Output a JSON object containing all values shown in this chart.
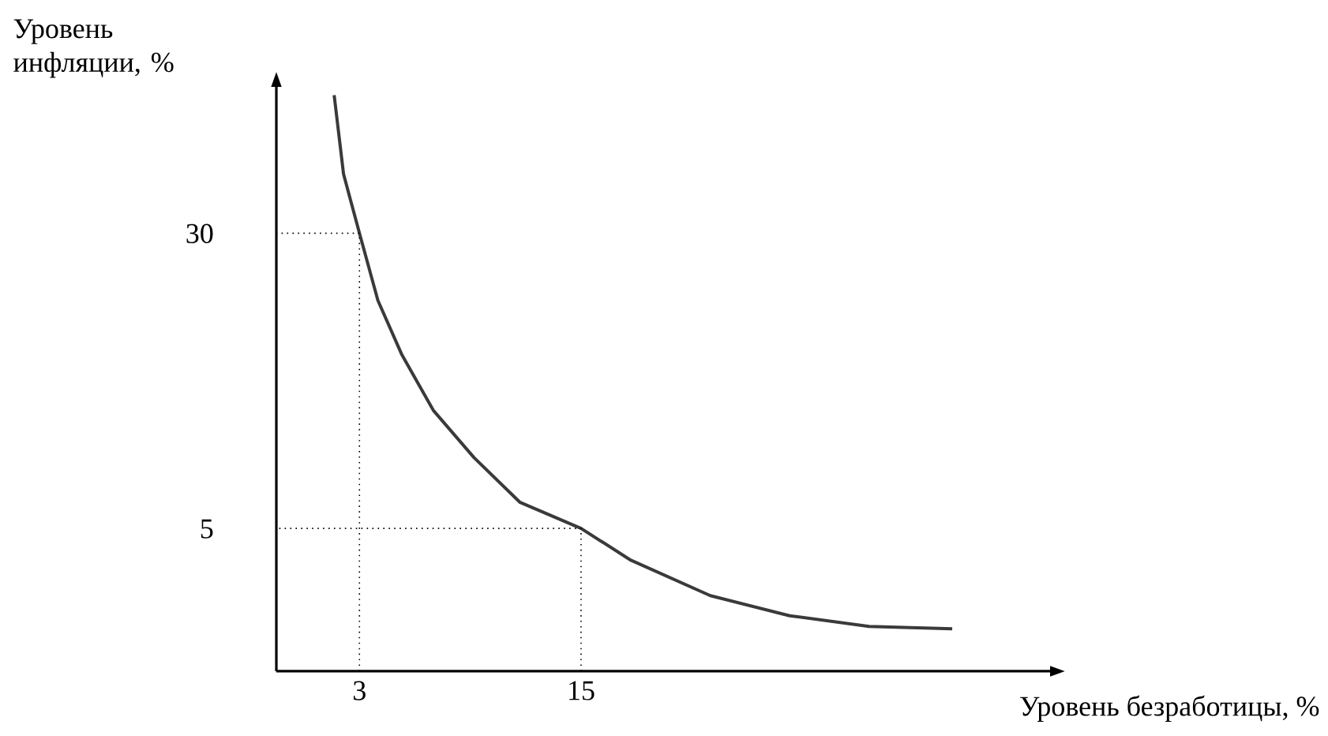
{
  "chart_data": {
    "type": "line",
    "xlabel": "Уровень безработицы, %",
    "ylabel": "Уровень инфляции, %",
    "xlim": [
      -1.5,
      40.4
    ],
    "ylim": [
      -7.1,
      42.4
    ],
    "xticks": [
      3,
      15
    ],
    "yticks": [
      5,
      30
    ],
    "series": [
      {
        "color": "#3a3a3a",
        "line_style": "solid",
        "x": [
          1.63,
          2.14,
          3,
          4.0,
          5.3,
          7.0,
          9.2,
          11.7,
          15,
          17.7,
          22.0,
          26.3,
          30.6,
          35.1
        ],
        "values": [
          41.7,
          35.0,
          30,
          24.3,
          19.7,
          15.0,
          11.0,
          7.2,
          5,
          2.3,
          -0.7,
          -2.4,
          -3.3,
          -3.5
        ]
      },
      {
        "color": "#000000",
        "line_style": "dotted",
        "x": [
          3,
          3,
          -1.5
        ],
        "values": [
          -7.1,
          30,
          30
        ]
      },
      {
        "color": "#000000",
        "line_style": "dotted",
        "x": [
          15,
          15,
          -1.5
        ],
        "values": [
          -7.1,
          5,
          5
        ]
      }
    ]
  }
}
